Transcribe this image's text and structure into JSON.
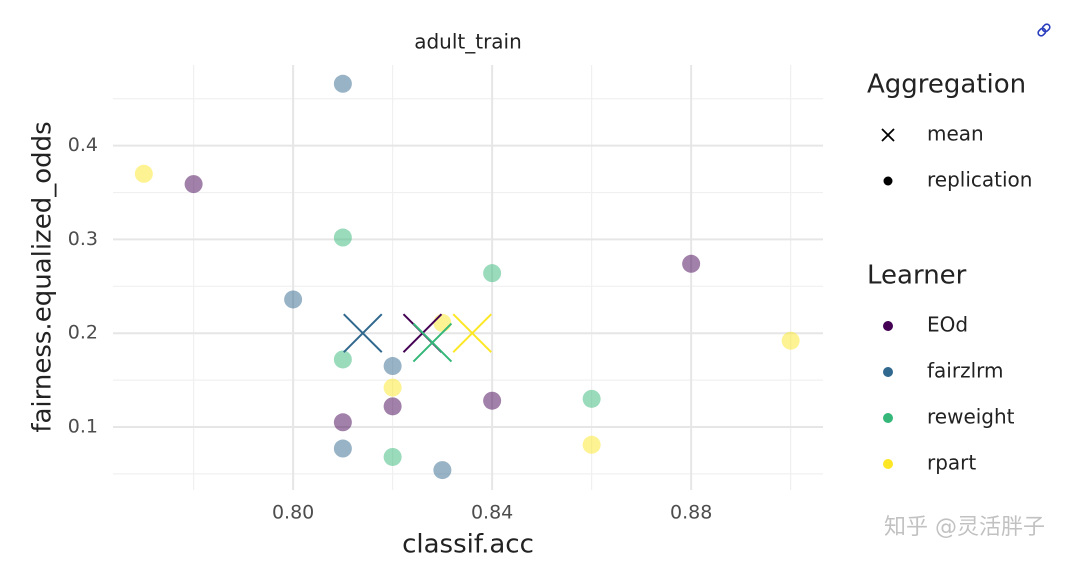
{
  "chart_data": {
    "type": "scatter",
    "title": "adult_train",
    "x_label": "classif.acc",
    "y_label": "fairness.equalized_odds",
    "xlim": [
      0.7638,
      0.9065
    ],
    "ylim": [
      0.0328,
      0.486
    ],
    "xticks": [
      {
        "value": 0.8,
        "label": "0.80"
      },
      {
        "value": 0.84,
        "label": "0.84"
      },
      {
        "value": 0.88,
        "label": "0.88"
      }
    ],
    "x_minor_ticks": [
      0.78,
      0.82,
      0.86,
      0.9
    ],
    "yticks": [
      0.1,
      0.2,
      0.3,
      0.4
    ],
    "y_minor_ticks": [
      0.05,
      0.15,
      0.25,
      0.35,
      0.45
    ],
    "grid": true,
    "aggregation": {
      "title": "Aggregation",
      "levels": [
        "mean",
        "replication"
      ]
    },
    "legend_title": "Learner",
    "series": [
      {
        "name": "EOd",
        "color": "#440154",
        "x": [
          0.78,
          0.88,
          0.81,
          0.82,
          0.84
        ],
        "values": [
          0.359,
          0.274,
          0.105,
          0.122,
          0.128
        ],
        "mean_x": 0.826,
        "mean_y": 0.2
      },
      {
        "name": "fairzlrm",
        "color": "#31688e",
        "x": [
          0.81,
          0.8,
          0.82,
          0.81,
          0.83
        ],
        "values": [
          0.466,
          0.236,
          0.165,
          0.077,
          0.054
        ],
        "mean_x": 0.814,
        "mean_y": 0.2
      },
      {
        "name": "reweight",
        "color": "#35b779",
        "x": [
          0.81,
          0.84,
          0.81,
          0.86,
          0.82
        ],
        "values": [
          0.302,
          0.264,
          0.172,
          0.13,
          0.068
        ],
        "mean_x": 0.828,
        "mean_y": 0.19
      },
      {
        "name": "rpart",
        "color": "#fde725",
        "x": [
          0.77,
          0.83,
          0.82,
          0.86,
          0.9
        ],
        "values": [
          0.37,
          0.211,
          0.142,
          0.081,
          0.192
        ],
        "mean_x": 0.836,
        "mean_y": 0.2
      }
    ],
    "watermark": "知乎 @灵活胖子"
  }
}
